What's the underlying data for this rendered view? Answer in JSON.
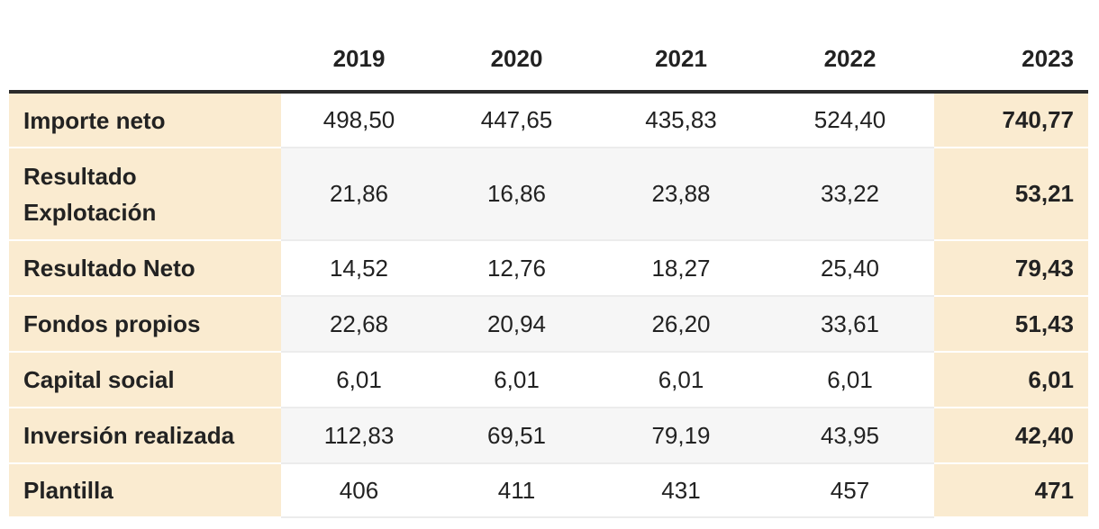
{
  "table": {
    "header": [
      "2019",
      "2020",
      "2021",
      "2022",
      "2023"
    ],
    "rows": [
      {
        "label": "Importe neto",
        "values": [
          "498,50",
          "447,65",
          "435,83",
          "524,40",
          "740,77"
        ]
      },
      {
        "label": "Resultado Explotación",
        "values": [
          "21,86",
          "16,86",
          "23,88",
          "33,22",
          "53,21"
        ]
      },
      {
        "label": "Resultado Neto",
        "values": [
          "14,52",
          "12,76",
          "18,27",
          "25,40",
          "79,43"
        ]
      },
      {
        "label": "Fondos propios",
        "values": [
          "22,68",
          "20,94",
          "26,20",
          "33,61",
          "51,43"
        ]
      },
      {
        "label": "Capital social",
        "values": [
          "6,01",
          "6,01",
          "6,01",
          "6,01",
          "6,01"
        ]
      },
      {
        "label": "Inversión realizada",
        "values": [
          "112,83",
          "69,51",
          "79,19",
          "43,95",
          "42,40"
        ]
      },
      {
        "label": "Plantilla",
        "values": [
          "406",
          "411",
          "431",
          "457",
          "471"
        ]
      }
    ]
  }
}
